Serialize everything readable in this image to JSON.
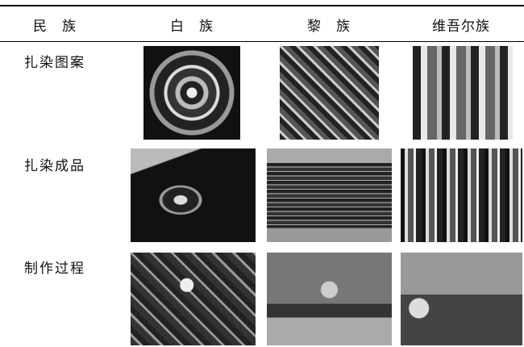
{
  "table": {
    "header": [
      "民　族",
      "白　族",
      "黎　族",
      "维吾尔族"
    ],
    "rows": [
      {
        "label": "扎染图案"
      },
      {
        "label": "扎染成品"
      },
      {
        "label": "制作过程"
      }
    ]
  }
}
